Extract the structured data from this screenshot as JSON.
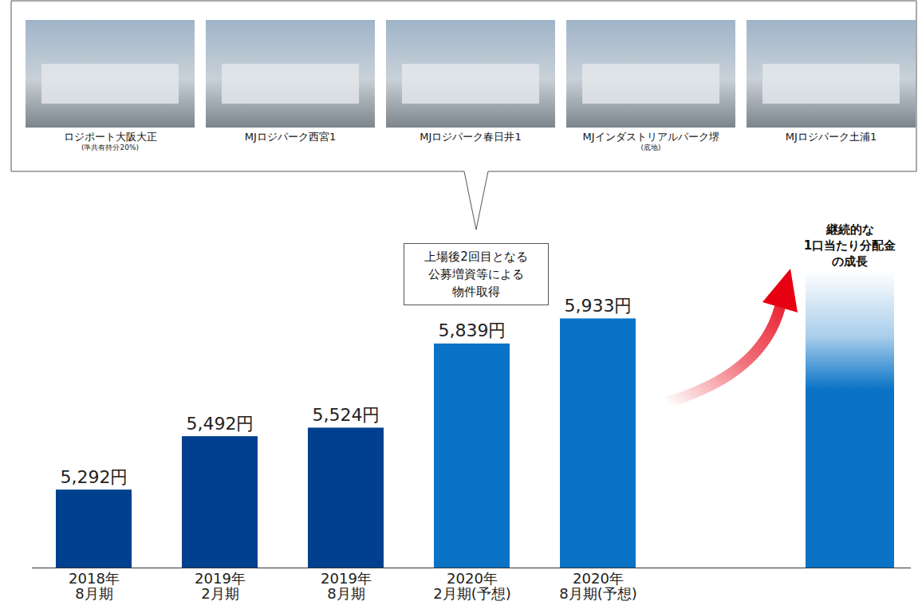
{
  "chart_data": {
    "type": "bar",
    "categories": [
      "2018年8月期",
      "2019年2月期",
      "2019年8月期",
      "2020年2月期(予想)",
      "2020年8月期(予想)"
    ],
    "values": [
      5292,
      5492,
      5524,
      5839,
      5933
    ],
    "value_labels": [
      "5,292円",
      "5,492円",
      "5,524円",
      "5,839円",
      "5,933円"
    ],
    "colors": [
      "#00408f",
      "#00408f",
      "#00408f",
      "#0a73c6",
      "#0a73c6"
    ],
    "ylim": [
      5000,
      6200
    ],
    "tick_labels": "x",
    "data_labels": true,
    "grid": false,
    "annotations": {
      "callout": [
        "上場後2回目となる",
        "公募増資等による",
        "物件取得"
      ],
      "growth": [
        "継続的な",
        "1口当たり分配金",
        "の成長"
      ]
    },
    "photos": [
      {
        "label": "ロジポート大阪大正",
        "note": "(準共有持分20%)"
      },
      {
        "label": "MJロジパーク西宮1"
      },
      {
        "label": "MJロジパーク春日井1"
      },
      {
        "label": "MJインダストリアルパーク堺",
        "note": "(底地)"
      },
      {
        "label": "MJロジパーク土浦1"
      }
    ]
  }
}
